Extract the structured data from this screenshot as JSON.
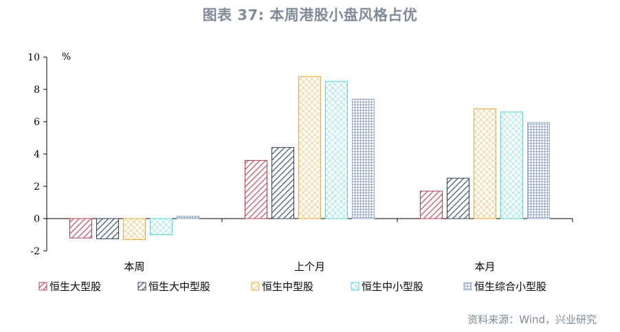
{
  "title": "图表 37: 本周港股小盘风格占优",
  "source": "资料来源：Wind，兴业研究",
  "chart_data": {
    "type": "bar",
    "title": "图表 37: 本周港股小盘风格占优",
    "unit_label": "%",
    "categories": [
      "本周",
      "上个月",
      "本月"
    ],
    "ylim": [
      -2,
      10
    ],
    "yticks": [
      -2,
      0,
      2,
      4,
      6,
      8,
      10
    ],
    "legend_position": "bottom",
    "series": [
      {
        "name": "恒生大型股",
        "values": [
          -1.2,
          3.6,
          1.7
        ],
        "color": "#c0394b",
        "pattern": "diag-forward"
      },
      {
        "name": "恒生大中型股",
        "values": [
          -1.25,
          4.4,
          2.5
        ],
        "color": "#2d3e55",
        "pattern": "diag-forward"
      },
      {
        "name": "恒生中型股",
        "values": [
          -1.3,
          8.8,
          6.8
        ],
        "color": "#f0a830",
        "pattern": "crosshatch"
      },
      {
        "name": "恒生中小型股",
        "values": [
          -1.0,
          8.5,
          6.6
        ],
        "color": "#52d6e0",
        "pattern": "crosshatch"
      },
      {
        "name": "恒生综合小型股",
        "values": [
          0.15,
          7.4,
          5.95
        ],
        "color": "#9bb0cc",
        "pattern": "grid"
      }
    ]
  }
}
